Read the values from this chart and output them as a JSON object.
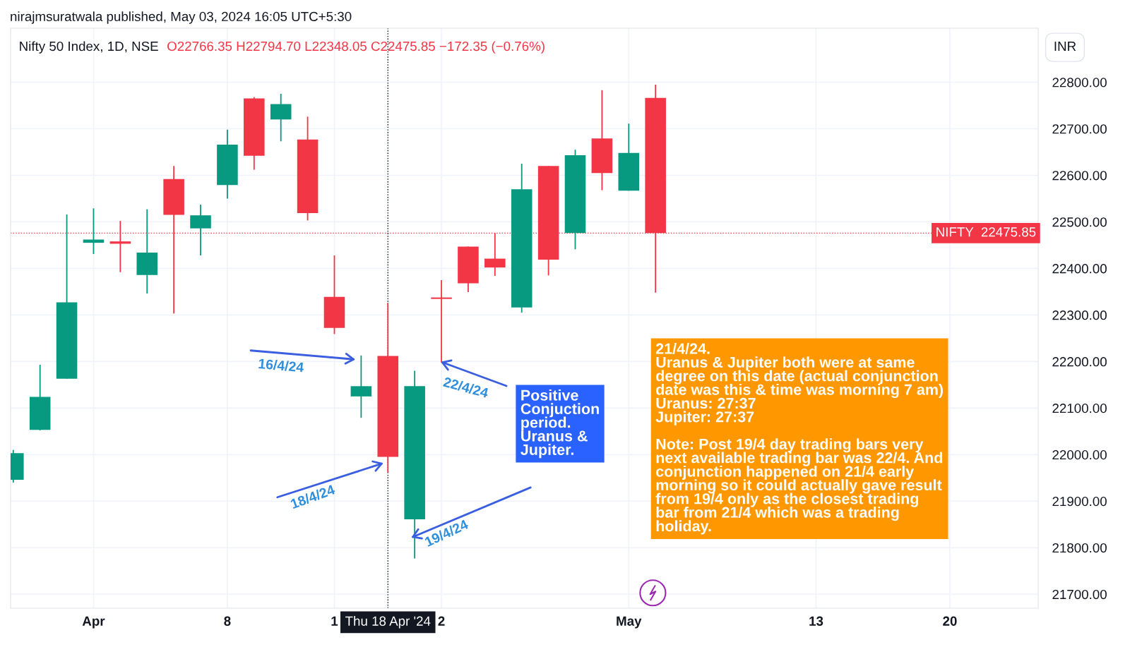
{
  "chart_data": {
    "type": "candlestick",
    "title": "Nifty 50 Index, 1D, NSE",
    "categories": [
      null,
      null,
      null,
      "Apr",
      null,
      null,
      null,
      null,
      "8",
      null,
      null,
      null,
      "1",
      null,
      "Thu 18 Apr '24",
      null,
      "2",
      null,
      null,
      null,
      null,
      null,
      null,
      "May",
      null,
      null,
      null,
      null,
      null,
      null,
      "13",
      null,
      null,
      null,
      null,
      "20",
      null,
      null,
      null
    ],
    "ohlc": [
      [
        21946,
        22010,
        21940,
        22003
      ],
      [
        22053,
        22193,
        22052,
        22124
      ],
      [
        22163,
        22516,
        22163,
        22327
      ],
      [
        22455,
        22529,
        22431,
        22462
      ],
      [
        22458,
        22502,
        22392,
        22453
      ],
      [
        22386,
        22527,
        22346,
        22434
      ],
      [
        22592,
        22620,
        22303,
        22515
      ],
      [
        22486,
        22537,
        22428,
        22514
      ],
      [
        22579,
        22698,
        22550,
        22666
      ],
      [
        22765,
        22768,
        22612,
        22642
      ],
      [
        22720,
        22775,
        22673,
        22753
      ],
      [
        22677,
        22726,
        22503,
        22519
      ],
      [
        22339,
        22428,
        22259,
        22272
      ],
      [
        22125,
        22213,
        22079,
        22147
      ],
      [
        22212,
        22326,
        21961,
        21995
      ],
      [
        21861,
        22180,
        21777,
        22147
      ],
      [
        22336,
        22375,
        22198,
        22336
      ],
      [
        22447,
        22447,
        22349,
        22368
      ],
      [
        22421,
        22476,
        22384,
        22402
      ],
      [
        22316,
        22625,
        22305,
        22570
      ],
      [
        22620,
        22620,
        22385,
        22419
      ],
      [
        22476,
        22655,
        22441,
        22643
      ],
      [
        22679,
        22783,
        22568,
        22605
      ],
      [
        22567,
        22711,
        22567,
        22648
      ],
      [
        22766.35,
        22794.7,
        22348.05,
        22475.85
      ],
      null,
      null,
      null,
      null,
      null,
      null,
      null,
      null,
      null,
      null,
      null,
      null,
      null,
      null
    ],
    "colors": [
      "#089981",
      "#089981",
      "#089981",
      "#089981",
      "#f23645",
      "#089981",
      "#f23645",
      "#089981",
      "#089981",
      "#f23645",
      "#089981",
      "#f23645",
      "#f23645",
      "#089981",
      "#f23645",
      "#089981",
      "#f23645",
      "#f23645",
      "#f23645",
      "#089981",
      "#f23645",
      "#089981",
      "#f23645",
      "#089981",
      "#f23645",
      null,
      null,
      null,
      null,
      null,
      null,
      null,
      null,
      null,
      null,
      null,
      null,
      null,
      null
    ],
    "ylim": [
      21670,
      22916
    ],
    "yticks": [
      {
        "value": 21700,
        "label": "21700.00"
      },
      {
        "value": 21800,
        "label": "21800.00"
      },
      {
        "value": 21900,
        "label": "21900.00"
      },
      {
        "value": 22000,
        "label": "22000.00"
      },
      {
        "value": 22100,
        "label": "22100.00"
      },
      {
        "value": 22200,
        "label": "22200.00"
      },
      {
        "value": 22300,
        "label": "22300.00"
      },
      {
        "value": 22400,
        "label": "22400.00"
      },
      {
        "value": 22500,
        "label": "22500.00"
      },
      {
        "value": 22600,
        "label": "22600.00"
      },
      {
        "value": 22700,
        "label": "22700.00"
      },
      {
        "value": 22800,
        "label": "22800.00"
      }
    ],
    "grid": true,
    "ref_lines": [
      {
        "axis": "y",
        "value": 22475.85,
        "label": "NIFTY  22475.85",
        "color": "#f23645",
        "line_style": "dotted"
      },
      {
        "axis": "x",
        "value": "Thu 18 Apr '24",
        "color": "#131722",
        "line_style": "dotted"
      }
    ],
    "annotations": [
      "nirajmsuratwala published, May 03, 2024 16:05 UTC+5:30",
      "O22766.35 H22794.70 L22348.05 C22475.85 −172.35 (−0.76%)",
      "INR",
      "16/4/24",
      "18/4/24",
      "19/4/24",
      "22/4/24",
      "Positive\nConjuction\nperiod.\nUranus &\nJupiter.",
      "21/4/24.\nUranus & Jupiter both were at same\ndegree on this date (actual conjunction\ndate was this & time was morning 7 am)\nUranus: 27:37\nJupiter: 27:37\n\nNote: Post 19/4 day trading bars very\nnext available trading bar was 22/4. And\nconjunction happened on 21/4 early\nmorning so it could actually gave result\nfrom 19/4 only as the closest trading\nbar from 21/4 which was a trading\nholiday."
    ]
  }
}
